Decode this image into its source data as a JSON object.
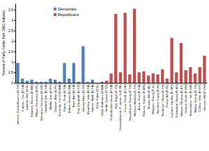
{
  "chart_data": {
    "type": "bar",
    "y_label": "Percent of Party Funds from O&G Industry",
    "categories": [
      "Johnson, Eddie Bernice (D-TX)",
      "Lofgren, Zoe (D-CA)",
      "Lipinski, Dan (D-IL)",
      "Edwards, Donna (D-MD)",
      "Wilson, Frederica (D-FL)",
      "Bonamici, Suzanne (D-OR)",
      "Swalwell, Eric (D-CA)",
      "Maffei, Dan (D-NY)",
      "Grayson, Alan (D-FL)",
      "Kennedy, Joe III (D-MA)",
      "Peters, Scott (D-CA)",
      "Kilmer, Derek (D-WA)",
      "Bera, Ami (D-CA)",
      "Esty, Elizabeth (D-CT)",
      "Veasey, Marc (D-TX)",
      "Brownley, Julia (D-CA)",
      "Takano, Mark (D-CA)",
      "Kelly, Robin (D-IL)",
      "Clark, Katherine (D-MA)",
      "Smith, Lamar (R-TX)",
      "Rohrabacher, Dana (R-CA)",
      "Hall, Ralph (R-TX)",
      "Sensenbrenner, F James Jr (R-WI)",
      "Lucas, Frank (R-OK)",
      "Neugebauer, Randy (R-TX)",
      "McCaul, Michael (R-TX)",
      "Broun, Paul (R-GA)",
      "Palazzo, Steven (R-MS)",
      "Brooks, Mo (R-AL)",
      "Hultgren, Randy (R-IL)",
      "Bucshon, Larry (R-IN)",
      "Stockman, Steve (R-TX)",
      "Posey, Bill (R-FL)",
      "Lummis, Cynthia (R-WY)",
      "Schweikert, David (R-AZ)",
      "Massie, Thomas (R-KY)",
      "Cramer, Kevin (R-ND)",
      "Bridenstine, Jim (R-OK)",
      "Weber, Randy (R-TX)",
      "Collins, Chris (R-NY)",
      "Johnson, Bill (R-OH)"
    ],
    "series": [
      {
        "name": "Democrats",
        "color": "#4f81bd",
        "values": [
          0.95,
          0.2,
          0.1,
          0.15,
          0.05,
          0.05,
          0.05,
          0.2,
          0.15,
          0.05,
          0.95,
          0.2,
          0.95,
          0.05,
          1.75,
          0.05,
          0.15,
          0,
          0.05,
          null,
          null,
          null,
          null,
          null,
          null,
          null,
          null,
          null,
          null,
          null,
          null,
          null,
          null,
          null,
          null,
          null,
          null,
          null,
          null,
          null,
          null
        ]
      },
      {
        "name": "Republicans",
        "color": "#c0504d",
        "values": [
          null,
          null,
          null,
          null,
          null,
          null,
          null,
          null,
          null,
          null,
          null,
          null,
          null,
          null,
          null,
          null,
          null,
          null,
          null,
          0.1,
          0.45,
          3.3,
          0.5,
          3.35,
          0.4,
          3.55,
          0.5,
          0.55,
          0.35,
          0.45,
          0.4,
          0.65,
          0.2,
          2.15,
          0.5,
          1.9,
          0.6,
          0.75,
          0.45,
          0.75,
          1.3
        ]
      }
    ],
    "ylim": [
      0,
      3.8
    ],
    "yticks": [
      0,
      0.5,
      1,
      1.5,
      2,
      2.5,
      3,
      3.5
    ],
    "grid": false,
    "legend": "top"
  }
}
